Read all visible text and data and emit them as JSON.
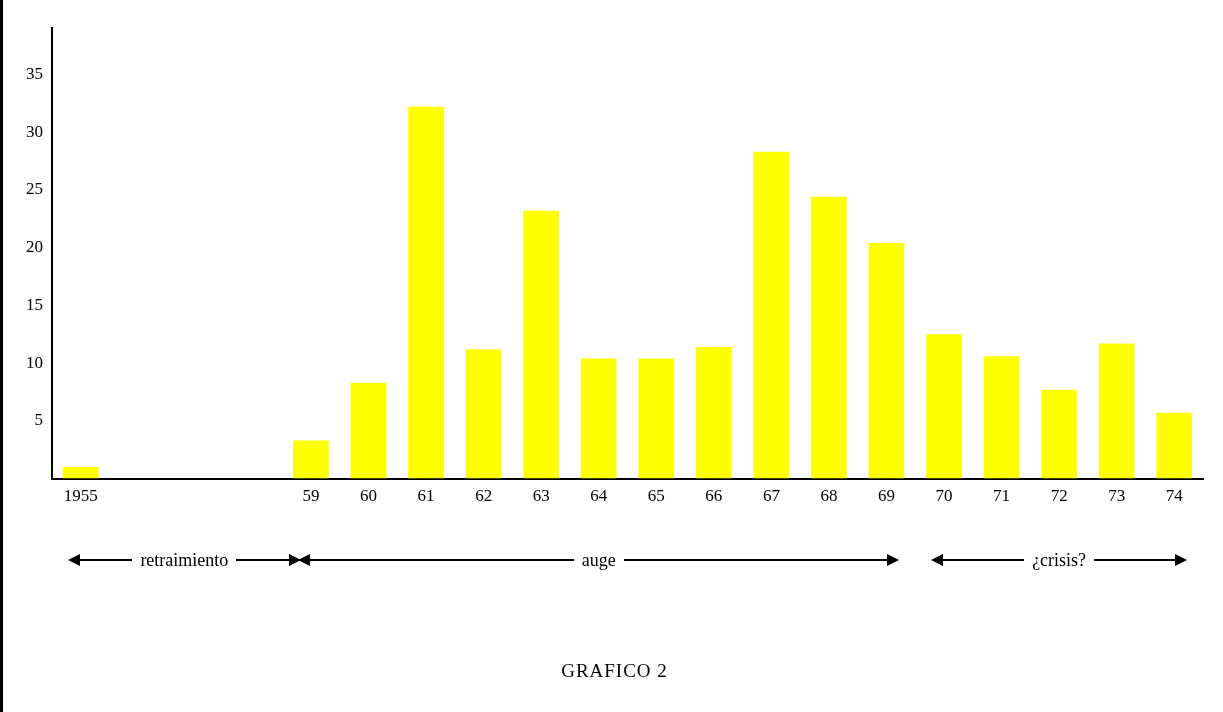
{
  "chart_data": {
    "type": "bar",
    "title": "GRAFICO 2",
    "categories": [
      "1955",
      null,
      null,
      null,
      "59",
      "60",
      "61",
      "62",
      "63",
      "64",
      "65",
      "66",
      "67",
      "68",
      "69",
      "70",
      "71",
      "72",
      "73",
      "74"
    ],
    "values": [
      1.0,
      null,
      null,
      null,
      3.3,
      8.3,
      32.2,
      11.2,
      23.2,
      10.4,
      10.4,
      11.4,
      28.3,
      24.4,
      20.4,
      12.5,
      10.6,
      7.7,
      11.7,
      5.7
    ],
    "color": "#ffff00",
    "ylim": [
      0,
      39
    ],
    "yticks": [
      5,
      10,
      15,
      20,
      25,
      30,
      35
    ],
    "grid": false,
    "legend": false,
    "annotations": [
      "retraimiento",
      "auge",
      "¿crisis?"
    ]
  }
}
